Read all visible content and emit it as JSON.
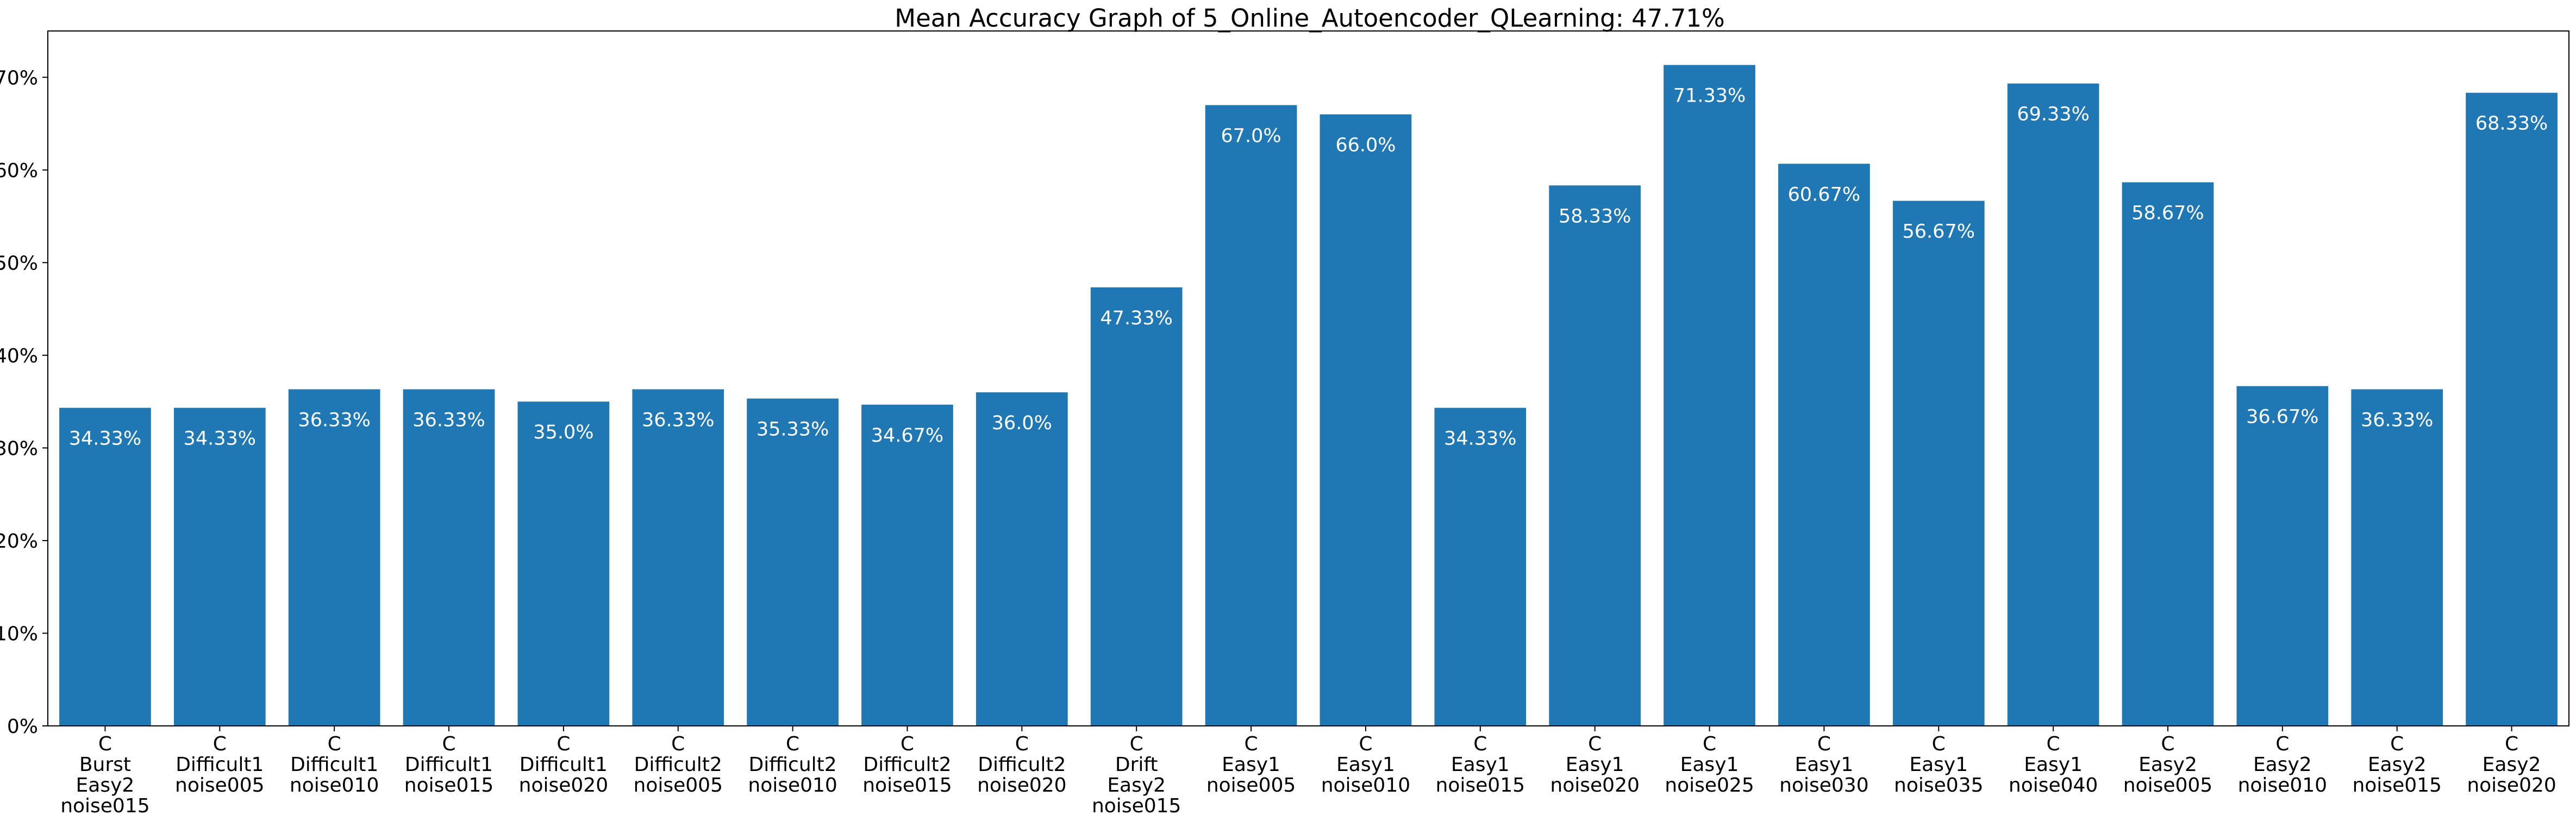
{
  "chart_data": {
    "type": "bar",
    "title": "Mean Accuracy Graph of 5_Online_Autoencoder_QLearning: 47.71%",
    "xlabel": "",
    "ylabel": "",
    "ylim": [
      0,
      75
    ],
    "yticks": [
      "0%",
      "10%",
      "20%",
      "30%",
      "40%",
      "50%",
      "60%",
      "70%"
    ],
    "ytick_values": [
      0,
      10,
      20,
      30,
      40,
      50,
      60,
      70
    ],
    "bar_color": "#1f77b4",
    "label_color": "#ffffff",
    "grid": false,
    "categories": [
      [
        "C",
        "Burst",
        "Easy2",
        "noise015"
      ],
      [
        "C",
        "Difficult1",
        "noise005"
      ],
      [
        "C",
        "Difficult1",
        "noise010"
      ],
      [
        "C",
        "Difficult1",
        "noise015"
      ],
      [
        "C",
        "Difficult1",
        "noise020"
      ],
      [
        "C",
        "Difficult2",
        "noise005"
      ],
      [
        "C",
        "Difficult2",
        "noise010"
      ],
      [
        "C",
        "Difficult2",
        "noise015"
      ],
      [
        "C",
        "Difficult2",
        "noise020"
      ],
      [
        "C",
        "Drift",
        "Easy2",
        "noise015"
      ],
      [
        "C",
        "Easy1",
        "noise005"
      ],
      [
        "C",
        "Easy1",
        "noise010"
      ],
      [
        "C",
        "Easy1",
        "noise015"
      ],
      [
        "C",
        "Easy1",
        "noise020"
      ],
      [
        "C",
        "Easy1",
        "noise025"
      ],
      [
        "C",
        "Easy1",
        "noise030"
      ],
      [
        "C",
        "Easy1",
        "noise035"
      ],
      [
        "C",
        "Easy1",
        "noise040"
      ],
      [
        "C",
        "Easy2",
        "noise005"
      ],
      [
        "C",
        "Easy2",
        "noise010"
      ],
      [
        "C",
        "Easy2",
        "noise015"
      ],
      [
        "C",
        "Easy2",
        "noise020"
      ]
    ],
    "values": [
      34.33,
      34.33,
      36.33,
      36.33,
      35.0,
      36.33,
      35.33,
      34.67,
      36.0,
      47.33,
      67.0,
      66.0,
      34.33,
      58.33,
      71.33,
      60.67,
      56.67,
      69.33,
      58.67,
      36.67,
      36.33,
      68.33
    ],
    "data_labels": [
      "34.33%",
      "34.33%",
      "36.33%",
      "36.33%",
      "35.0%",
      "36.33%",
      "35.33%",
      "34.67%",
      "36.0%",
      "47.33%",
      "67.0%",
      "66.0%",
      "34.33%",
      "58.33%",
      "71.33%",
      "60.67%",
      "56.67%",
      "69.33%",
      "58.67%",
      "36.67%",
      "36.33%",
      "68.33%"
    ]
  }
}
